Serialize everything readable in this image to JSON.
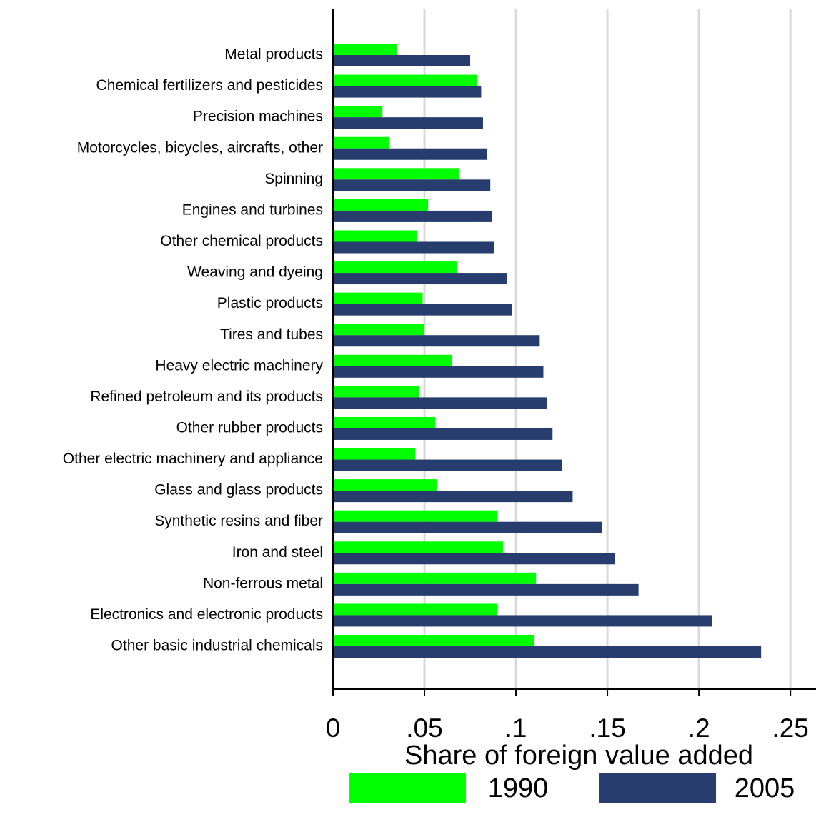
{
  "chart_data": {
    "type": "bar",
    "orientation": "horizontal",
    "x_label": "Share of foreign value added",
    "categories": [
      "Metal products",
      "Chemical fertilizers and pesticides",
      "Precision machines",
      "Motorcycles, bicycles, aircrafts, other",
      "Spinning",
      "Engines and turbines",
      "Other chemical products",
      "Weaving and dyeing",
      "Plastic products",
      "Tires and tubes",
      "Heavy electric machinery",
      "Refined petroleum and its products",
      "Other rubber products",
      "Other electric machinery and appliance",
      "Glass and glass products",
      "Synthetic resins and fiber",
      "Iron and steel",
      "Non-ferrous metal",
      "Electronics and electronic products",
      "Other basic industrial chemicals"
    ],
    "series": [
      {
        "name": "1990",
        "color": "#00ff00",
        "values": [
          0.035,
          0.079,
          0.027,
          0.031,
          0.069,
          0.052,
          0.046,
          0.068,
          0.049,
          0.05,
          0.065,
          0.047,
          0.056,
          0.045,
          0.057,
          0.09,
          0.093,
          0.111,
          0.09,
          0.11
        ]
      },
      {
        "name": "2005",
        "color": "#263d6e",
        "values": [
          0.075,
          0.081,
          0.082,
          0.084,
          0.086,
          0.087,
          0.088,
          0.095,
          0.098,
          0.113,
          0.115,
          0.117,
          0.12,
          0.125,
          0.131,
          0.147,
          0.154,
          0.167,
          0.207,
          0.234
        ]
      }
    ],
    "xlim": [
      0,
      0.264
    ],
    "xticks": [
      0,
      {
        "value": 0.05,
        "label": ".05"
      },
      {
        "value": 0.1,
        "label": ".1"
      },
      {
        "value": 0.15,
        "label": ".15"
      },
      {
        "value": 0.2,
        "label": ".2"
      },
      {
        "value": 0.25,
        "label": ".25"
      }
    ],
    "grid": true,
    "legend": "bottom"
  }
}
